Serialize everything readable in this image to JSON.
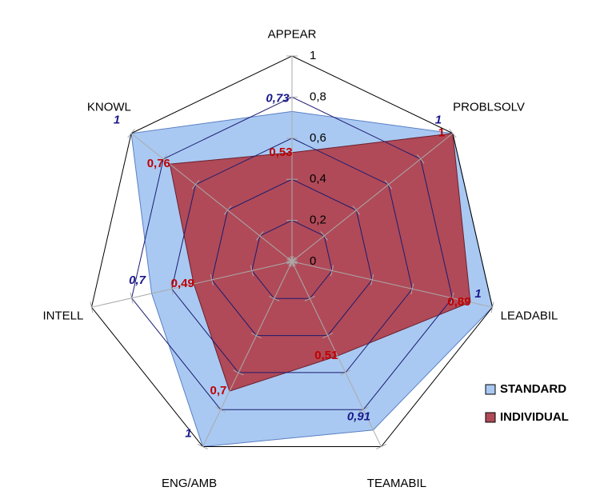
{
  "chart_data": {
    "type": "radar",
    "categories": [
      "APPEAR",
      "PROBLSOLV",
      "LEADABIL",
      "TEAMABIL",
      "ENG/AMB",
      "INTELL",
      "KNOWL"
    ],
    "series": [
      {
        "name": "STANDARD",
        "color": "#a9c9f2",
        "label_color": "#1a1a8c",
        "values": [
          0.73,
          1,
          1,
          0.91,
          1,
          0.7,
          1
        ],
        "value_labels": [
          "0,73",
          "1",
          "1",
          "0,91",
          "1",
          "0,7",
          "1"
        ]
      },
      {
        "name": "INDIVIDUAL",
        "color": "#b04a58",
        "label_color": "#c00000",
        "values": [
          0.53,
          1,
          0.89,
          0.51,
          0.7,
          0.49,
          0.76
        ],
        "value_labels": [
          "0,53",
          "1",
          "0,89",
          "0,51",
          "0,7",
          "0,49",
          "0,76"
        ]
      }
    ],
    "ylim": [
      0,
      1
    ],
    "yticks": [
      0,
      {
        "value": 0.2,
        "label": "0,2"
      },
      {
        "value": 0.4,
        "label": "0,4"
      },
      {
        "value": 0.6,
        "label": "0,6"
      },
      {
        "value": 0.8,
        "label": "0,8"
      },
      1
    ],
    "grid": true,
    "legend": "right"
  }
}
